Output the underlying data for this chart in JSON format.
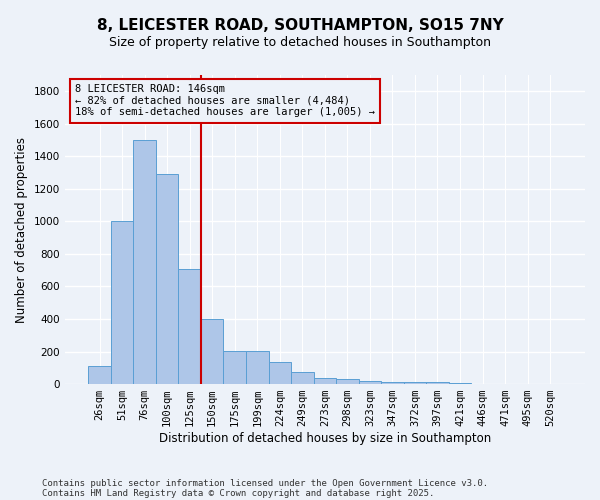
{
  "title": "8, LEICESTER ROAD, SOUTHAMPTON, SO15 7NY",
  "subtitle": "Size of property relative to detached houses in Southampton",
  "xlabel": "Distribution of detached houses by size in Southampton",
  "ylabel": "Number of detached properties",
  "categories": [
    "26sqm",
    "51sqm",
    "76sqm",
    "100sqm",
    "125sqm",
    "150sqm",
    "175sqm",
    "199sqm",
    "224sqm",
    "249sqm",
    "273sqm",
    "298sqm",
    "323sqm",
    "347sqm",
    "372sqm",
    "397sqm",
    "421sqm",
    "446sqm",
    "471sqm",
    "495sqm",
    "520sqm"
  ],
  "values": [
    110,
    1000,
    1500,
    1290,
    710,
    400,
    205,
    205,
    135,
    75,
    40,
    30,
    18,
    12,
    10,
    12,
    5,
    0,
    0,
    0,
    0
  ],
  "bar_color": "#aec6e8",
  "bar_edge_color": "#5a9fd4",
  "vline_x": 4.5,
  "vline_color": "#cc0000",
  "annotation_line1": "8 LEICESTER ROAD: 146sqm",
  "annotation_line2": "← 82% of detached houses are smaller (4,484)",
  "annotation_line3": "18% of semi-detached houses are larger (1,005) →",
  "annotation_box_color": "#cc0000",
  "background_color": "#edf2f9",
  "grid_color": "#ffffff",
  "ylim": [
    0,
    1900
  ],
  "yticks": [
    0,
    200,
    400,
    600,
    800,
    1000,
    1200,
    1400,
    1600,
    1800
  ],
  "footer_line1": "Contains HM Land Registry data © Crown copyright and database right 2025.",
  "footer_line2": "Contains public sector information licensed under the Open Government Licence v3.0.",
  "title_fontsize": 11,
  "subtitle_fontsize": 9,
  "xlabel_fontsize": 8.5,
  "ylabel_fontsize": 8.5,
  "tick_fontsize": 7.5,
  "annotation_fontsize": 7.5,
  "footer_fontsize": 6.5
}
